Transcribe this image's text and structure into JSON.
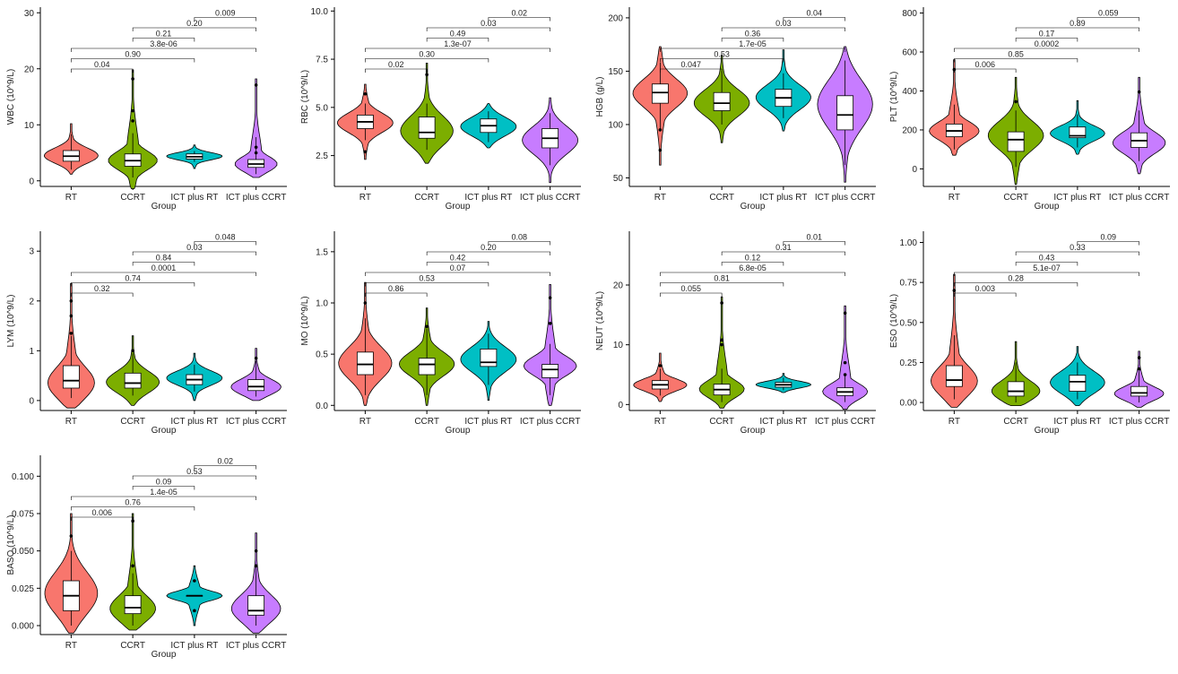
{
  "x_title": "Group",
  "groups": [
    "RT",
    "CCRT",
    "ICT plus RT",
    "ICT plus CCRT"
  ],
  "colors": {
    "RT": "#F8766D",
    "CCRT": "#7CAE00",
    "ICT plus RT": "#00BFC4",
    "ICT plus CCRT": "#C77CFF"
  },
  "chart_data": [
    {
      "type": "violin",
      "ylabel": "WBC (10^9/L)",
      "ylim": [
        -1,
        31
      ],
      "yticks": [
        0,
        10,
        20,
        30
      ],
      "ytick_labels": [
        "0",
        "10",
        "20",
        "30"
      ],
      "categories": [
        "RT",
        "CCRT",
        "ICT plus RT",
        "ICT plus CCRT"
      ],
      "stats": [
        {
          "min": 1.2,
          "max": 10.2,
          "q1": 3.5,
          "median": 4.4,
          "q3": 5.4,
          "wlo": 2.0,
          "whi": 8.3,
          "mode": 4.4,
          "outliers": []
        },
        {
          "min": -1.4,
          "max": 19.8,
          "q1": 2.6,
          "median": 3.6,
          "q3": 4.8,
          "wlo": 0.6,
          "whi": 8.5,
          "mode": 3.5,
          "outliers": [
            18.2,
            12.5,
            10.7
          ]
        },
        {
          "min": 2.2,
          "max": 6.4,
          "q1": 3.9,
          "median": 4.3,
          "q3": 4.8,
          "wlo": 3.4,
          "whi": 5.3,
          "mode": 4.4,
          "outliers": []
        },
        {
          "min": 0.6,
          "max": 18.2,
          "q1": 2.4,
          "median": 3.0,
          "q3": 3.8,
          "wlo": 1.2,
          "whi": 7.8,
          "mode": 2.8,
          "outliers": [
            17.1,
            6.0,
            5.0
          ]
        }
      ],
      "comparisons": [
        {
          "a": 0,
          "b": 1,
          "p": "0.04"
        },
        {
          "a": 0,
          "b": 2,
          "p": "0.90"
        },
        {
          "a": 0,
          "b": 3,
          "p": "3.8e-06"
        },
        {
          "a": 1,
          "b": 2,
          "p": "0.21"
        },
        {
          "a": 1,
          "b": 3,
          "p": "0.20"
        },
        {
          "a": 2,
          "b": 3,
          "p": "0.009"
        }
      ]
    },
    {
      "type": "violin",
      "ylabel": "RBC (10^9/L)",
      "ylim": [
        0.9,
        10.2
      ],
      "yticks": [
        2.5,
        5.0,
        7.5,
        10.0
      ],
      "ytick_labels": [
        "2.5",
        "5.0",
        "7.5",
        "10.0"
      ],
      "categories": [
        "RT",
        "CCRT",
        "ICT plus RT",
        "ICT plus CCRT"
      ],
      "stats": [
        {
          "min": 2.3,
          "max": 6.2,
          "q1": 3.9,
          "median": 4.25,
          "q3": 4.6,
          "wlo": 3.3,
          "whi": 5.2,
          "mode": 4.2,
          "outliers": [
            5.7,
            2.7
          ]
        },
        {
          "min": 2.1,
          "max": 7.3,
          "q1": 3.4,
          "median": 3.7,
          "q3": 4.5,
          "wlo": 2.8,
          "whi": 5.2,
          "mode": 3.7,
          "outliers": [
            6.7
          ]
        },
        {
          "min": 2.9,
          "max": 5.2,
          "q1": 3.7,
          "median": 4.05,
          "q3": 4.4,
          "wlo": 3.2,
          "whi": 4.8,
          "mode": 4.0,
          "outliers": []
        },
        {
          "min": 1.1,
          "max": 5.5,
          "q1": 2.9,
          "median": 3.4,
          "q3": 3.9,
          "wlo": 2.0,
          "whi": 4.7,
          "mode": 3.3,
          "outliers": []
        }
      ],
      "comparisons": [
        {
          "a": 0,
          "b": 1,
          "p": "0.02"
        },
        {
          "a": 0,
          "b": 2,
          "p": "0.30"
        },
        {
          "a": 0,
          "b": 3,
          "p": "1.3e-07"
        },
        {
          "a": 1,
          "b": 2,
          "p": "0.49"
        },
        {
          "a": 1,
          "b": 3,
          "p": "0.03"
        },
        {
          "a": 2,
          "b": 3,
          "p": "0.02"
        }
      ]
    },
    {
      "type": "violin",
      "ylabel": "HGB (g/L)",
      "ylim": [
        42,
        210
      ],
      "yticks": [
        50,
        100,
        150,
        200
      ],
      "ytick_labels": [
        "50",
        "100",
        "150",
        "200"
      ],
      "categories": [
        "RT",
        "CCRT",
        "ICT plus RT",
        "ICT plus CCRT"
      ],
      "stats": [
        {
          "min": 62,
          "max": 173,
          "q1": 120,
          "median": 130,
          "q3": 138,
          "wlo": 96,
          "whi": 158,
          "mode": 130,
          "outliers": [
            95,
            76
          ]
        },
        {
          "min": 83,
          "max": 165,
          "q1": 113,
          "median": 120,
          "q3": 130,
          "wlo": 100,
          "whi": 150,
          "mode": 120,
          "outliers": []
        },
        {
          "min": 94,
          "max": 170,
          "q1": 117,
          "median": 125,
          "q3": 133,
          "wlo": 106,
          "whi": 148,
          "mode": 125,
          "outliers": []
        },
        {
          "min": 46,
          "max": 173,
          "q1": 95,
          "median": 109,
          "q3": 127,
          "wlo": 62,
          "whi": 160,
          "mode": 120,
          "outliers": []
        }
      ],
      "comparisons": [
        {
          "a": 0,
          "b": 1,
          "p": "0.047"
        },
        {
          "a": 0,
          "b": 2,
          "p": "0.53"
        },
        {
          "a": 0,
          "b": 3,
          "p": "1.7e-05"
        },
        {
          "a": 1,
          "b": 2,
          "p": "0.36"
        },
        {
          "a": 1,
          "b": 3,
          "p": "0.03"
        },
        {
          "a": 2,
          "b": 3,
          "p": "0.04"
        }
      ]
    },
    {
      "type": "violin",
      "ylabel": "PLT (10^9/L)",
      "ylim": [
        -90,
        830
      ],
      "yticks": [
        0,
        200,
        400,
        600,
        800
      ],
      "ytick_labels": [
        "0",
        "200",
        "400",
        "600",
        "800"
      ],
      "categories": [
        "RT",
        "CCRT",
        "ICT plus RT",
        "ICT plus CCRT"
      ],
      "stats": [
        {
          "min": 70,
          "max": 560,
          "q1": 165,
          "median": 195,
          "q3": 230,
          "wlo": 100,
          "whi": 330,
          "mode": 190,
          "outliers": [
            510
          ]
        },
        {
          "min": -80,
          "max": 470,
          "q1": 90,
          "median": 150,
          "q3": 190,
          "wlo": 10,
          "whi": 300,
          "mode": 170,
          "outliers": [
            345
          ]
        },
        {
          "min": 75,
          "max": 350,
          "q1": 160,
          "median": 170,
          "q3": 215,
          "wlo": 110,
          "whi": 280,
          "mode": 180,
          "outliers": []
        },
        {
          "min": -25,
          "max": 470,
          "q1": 110,
          "median": 145,
          "q3": 185,
          "wlo": 40,
          "whi": 300,
          "mode": 130,
          "outliers": [
            395
          ]
        }
      ],
      "comparisons": [
        {
          "a": 0,
          "b": 1,
          "p": "0.006"
        },
        {
          "a": 0,
          "b": 2,
          "p": "0.85"
        },
        {
          "a": 0,
          "b": 3,
          "p": "0.0002"
        },
        {
          "a": 1,
          "b": 2,
          "p": "0.17"
        },
        {
          "a": 1,
          "b": 3,
          "p": "0.89"
        },
        {
          "a": 2,
          "b": 3,
          "p": "0.059"
        }
      ]
    },
    {
      "type": "violin",
      "ylabel": "LYM (10^9/L)",
      "ylim": [
        -0.2,
        3.4
      ],
      "yticks": [
        0,
        1,
        2,
        3
      ],
      "ytick_labels": [
        "0",
        "1",
        "2",
        "3"
      ],
      "categories": [
        "RT",
        "CCRT",
        "ICT plus RT",
        "ICT plus CCRT"
      ],
      "stats": [
        {
          "min": -0.15,
          "max": 2.35,
          "q1": 0.25,
          "median": 0.4,
          "q3": 0.7,
          "wlo": 0.05,
          "whi": 1.3,
          "mode": 0.3,
          "outliers": [
            2.0,
            1.7,
            1.35
          ]
        },
        {
          "min": -0.1,
          "max": 1.3,
          "q1": 0.25,
          "median": 0.35,
          "q3": 0.55,
          "wlo": 0.1,
          "whi": 0.95,
          "mode": 0.35,
          "outliers": [
            1.0
          ]
        },
        {
          "min": 0.0,
          "max": 0.95,
          "q1": 0.32,
          "median": 0.42,
          "q3": 0.52,
          "wlo": 0.18,
          "whi": 0.72,
          "mode": 0.45,
          "outliers": []
        },
        {
          "min": 0.0,
          "max": 1.05,
          "q1": 0.2,
          "median": 0.28,
          "q3": 0.42,
          "wlo": 0.08,
          "whi": 0.8,
          "mode": 0.25,
          "outliers": [
            0.85
          ]
        }
      ],
      "comparisons": [
        {
          "a": 0,
          "b": 1,
          "p": "0.32"
        },
        {
          "a": 0,
          "b": 2,
          "p": "0.74"
        },
        {
          "a": 0,
          "b": 3,
          "p": "0.0001"
        },
        {
          "a": 1,
          "b": 2,
          "p": "0.84"
        },
        {
          "a": 1,
          "b": 3,
          "p": "0.03"
        },
        {
          "a": 2,
          "b": 3,
          "p": "0.048"
        }
      ]
    },
    {
      "type": "violin",
      "ylabel": "MO (10^9/L)",
      "ylim": [
        -0.05,
        1.7
      ],
      "yticks": [
        0.0,
        0.5,
        1.0,
        1.5
      ],
      "ytick_labels": [
        "0.0",
        "0.5",
        "1.0",
        "1.5"
      ],
      "categories": [
        "RT",
        "CCRT",
        "ICT plus RT",
        "ICT plus CCRT"
      ],
      "stats": [
        {
          "min": 0.0,
          "max": 1.2,
          "q1": 0.3,
          "median": 0.4,
          "q3": 0.52,
          "wlo": 0.1,
          "whi": 0.85,
          "mode": 0.4,
          "outliers": [
            1.0
          ]
        },
        {
          "min": 0.0,
          "max": 0.95,
          "q1": 0.3,
          "median": 0.4,
          "q3": 0.46,
          "wlo": 0.1,
          "whi": 0.75,
          "mode": 0.4,
          "outliers": [
            0.77
          ]
        },
        {
          "min": 0.05,
          "max": 0.82,
          "q1": 0.38,
          "median": 0.42,
          "q3": 0.55,
          "wlo": 0.2,
          "whi": 0.7,
          "mode": 0.45,
          "outliers": []
        },
        {
          "min": 0.0,
          "max": 1.18,
          "q1": 0.27,
          "median": 0.35,
          "q3": 0.4,
          "wlo": 0.1,
          "whi": 0.6,
          "mode": 0.38,
          "outliers": [
            1.05,
            0.8
          ]
        }
      ],
      "comparisons": [
        {
          "a": 0,
          "b": 1,
          "p": "0.86"
        },
        {
          "a": 0,
          "b": 2,
          "p": "0.53"
        },
        {
          "a": 0,
          "b": 3,
          "p": "0.07"
        },
        {
          "a": 1,
          "b": 2,
          "p": "0.42"
        },
        {
          "a": 1,
          "b": 3,
          "p": "0.20"
        },
        {
          "a": 2,
          "b": 3,
          "p": "0.08"
        }
      ]
    },
    {
      "type": "violin",
      "ylabel": "NEUT (10^9/L)",
      "ylim": [
        -1,
        29
      ],
      "yticks": [
        0,
        10,
        20
      ],
      "ytick_labels": [
        "0",
        "10",
        "20"
      ],
      "categories": [
        "RT",
        "CCRT",
        "ICT plus RT",
        "ICT plus CCRT"
      ],
      "stats": [
        {
          "min": 0.5,
          "max": 8.6,
          "q1": 2.6,
          "median": 3.3,
          "q3": 4.0,
          "wlo": 1.5,
          "whi": 6.0,
          "mode": 3.2,
          "outliers": [
            6.5
          ]
        },
        {
          "min": -0.6,
          "max": 18.0,
          "q1": 1.6,
          "median": 2.5,
          "q3": 3.4,
          "wlo": 0.4,
          "whi": 6.0,
          "mode": 2.4,
          "outliers": [
            17.0,
            10.8,
            10.0
          ]
        },
        {
          "min": 2.0,
          "max": 5.2,
          "q1": 2.9,
          "median": 3.3,
          "q3": 3.7,
          "wlo": 2.4,
          "whi": 4.5,
          "mode": 3.3,
          "outliers": []
        },
        {
          "min": -0.8,
          "max": 16.5,
          "q1": 1.5,
          "median": 2.1,
          "q3": 2.8,
          "wlo": 0.4,
          "whi": 4.8,
          "mode": 2.0,
          "outliers": [
            15.3,
            7.0,
            5.0
          ]
        }
      ],
      "comparisons": [
        {
          "a": 0,
          "b": 1,
          "p": "0.055"
        },
        {
          "a": 0,
          "b": 2,
          "p": "0.81"
        },
        {
          "a": 0,
          "b": 3,
          "p": "6.8e-05"
        },
        {
          "a": 1,
          "b": 2,
          "p": "0.12"
        },
        {
          "a": 1,
          "b": 3,
          "p": "0.31"
        },
        {
          "a": 2,
          "b": 3,
          "p": "0.01"
        }
      ]
    },
    {
      "type": "violin",
      "ylabel": "ESO (10^9/L)",
      "ylim": [
        -0.05,
        1.07
      ],
      "yticks": [
        0.0,
        0.25,
        0.5,
        0.75,
        1.0
      ],
      "ytick_labels": [
        "0.00",
        "0.25",
        "0.50",
        "0.75",
        "1.00"
      ],
      "categories": [
        "RT",
        "CCRT",
        "ICT plus RT",
        "ICT plus CCRT"
      ],
      "stats": [
        {
          "min": -0.03,
          "max": 0.8,
          "q1": 0.1,
          "median": 0.14,
          "q3": 0.23,
          "wlo": 0.02,
          "whi": 0.42,
          "mode": 0.12,
          "outliers": [
            0.7
          ]
        },
        {
          "min": -0.02,
          "max": 0.38,
          "q1": 0.04,
          "median": 0.07,
          "q3": 0.13,
          "wlo": 0.0,
          "whi": 0.25,
          "mode": 0.06,
          "outliers": []
        },
        {
          "min": -0.02,
          "max": 0.35,
          "q1": 0.07,
          "median": 0.13,
          "q3": 0.17,
          "wlo": 0.02,
          "whi": 0.25,
          "mode": 0.12,
          "outliers": []
        },
        {
          "min": -0.03,
          "max": 0.32,
          "q1": 0.04,
          "median": 0.06,
          "q3": 0.1,
          "wlo": 0.0,
          "whi": 0.2,
          "mode": 0.05,
          "outliers": [
            0.28,
            0.21
          ]
        }
      ],
      "comparisons": [
        {
          "a": 0,
          "b": 1,
          "p": "0.003"
        },
        {
          "a": 0,
          "b": 2,
          "p": "0.28"
        },
        {
          "a": 0,
          "b": 3,
          "p": "5.1e-07"
        },
        {
          "a": 1,
          "b": 2,
          "p": "0.43"
        },
        {
          "a": 1,
          "b": 3,
          "p": "0.33"
        },
        {
          "a": 2,
          "b": 3,
          "p": "0.09"
        }
      ]
    },
    {
      "type": "violin",
      "ylabel": "BASO (10^9/L)",
      "ylim": [
        -0.006,
        0.114
      ],
      "yticks": [
        0.0,
        0.025,
        0.05,
        0.075,
        0.1
      ],
      "ytick_labels": [
        "0.000",
        "0.025",
        "0.050",
        "0.075",
        "0.100"
      ],
      "categories": [
        "RT",
        "CCRT",
        "ICT plus RT",
        "ICT plus CCRT"
      ],
      "stats": [
        {
          "min": -0.005,
          "max": 0.075,
          "q1": 0.01,
          "median": 0.02,
          "q3": 0.03,
          "wlo": 0.0,
          "whi": 0.05,
          "mode": 0.02,
          "outliers": [
            0.06
          ]
        },
        {
          "min": -0.003,
          "max": 0.075,
          "q1": 0.008,
          "median": 0.012,
          "q3": 0.02,
          "wlo": 0.0,
          "whi": 0.035,
          "mode": 0.01,
          "outliers": [
            0.07,
            0.04
          ]
        },
        {
          "min": 0.0,
          "max": 0.04,
          "q1": 0.02,
          "median": 0.02,
          "q3": 0.02,
          "wlo": 0.02,
          "whi": 0.02,
          "mode": 0.02,
          "outliers": [
            0.03,
            0.01
          ]
        },
        {
          "min": -0.005,
          "max": 0.062,
          "q1": 0.007,
          "median": 0.01,
          "q3": 0.02,
          "wlo": 0.0,
          "whi": 0.04,
          "mode": 0.01,
          "outliers": [
            0.05,
            0.04
          ]
        }
      ],
      "comparisons": [
        {
          "a": 0,
          "b": 1,
          "p": "0.006"
        },
        {
          "a": 0,
          "b": 2,
          "p": "0.76"
        },
        {
          "a": 0,
          "b": 3,
          "p": "1.4e-05"
        },
        {
          "a": 1,
          "b": 2,
          "p": "0.09"
        },
        {
          "a": 1,
          "b": 3,
          "p": "0.53"
        },
        {
          "a": 2,
          "b": 3,
          "p": "0.02"
        }
      ]
    }
  ]
}
